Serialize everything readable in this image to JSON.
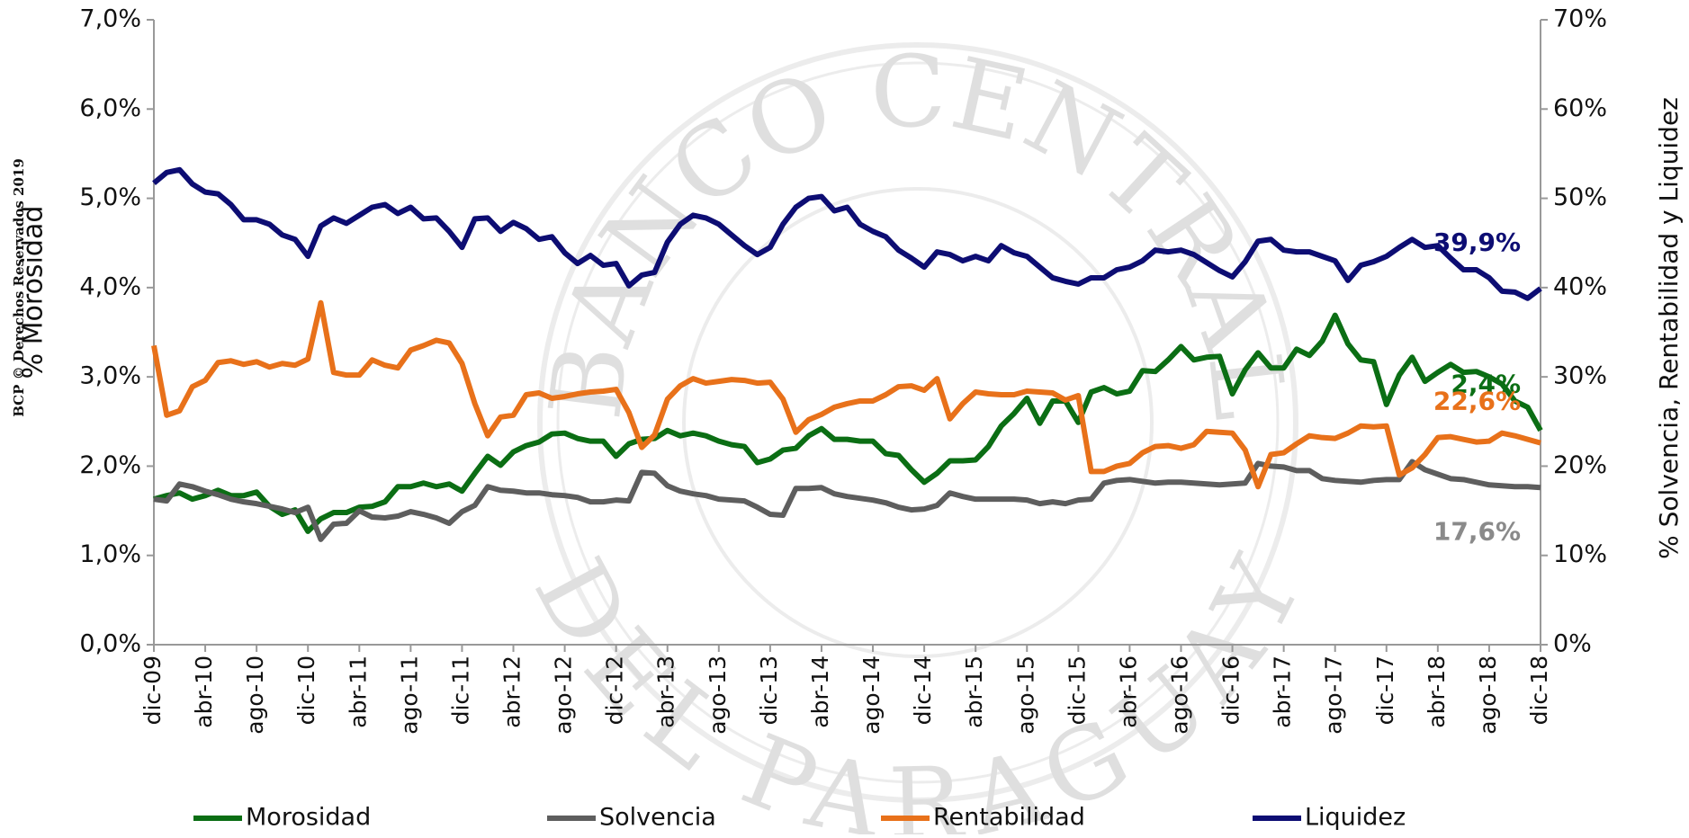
{
  "chart_data": {
    "type": "line",
    "left_axis_title": "% Morosidad",
    "right_axis_title": "% Solvencia, Rentabilidad  y Liquidez",
    "watermark": "BCP © Derechos Reservados 2019",
    "background_seal": [
      "BANCO CENTRAL",
      "DEL PARAGUAY"
    ],
    "categories": [
      "dic-09",
      null,
      null,
      null,
      "abr-10",
      null,
      null,
      null,
      "ago-10",
      null,
      null,
      null,
      "dic-10",
      null,
      null,
      null,
      "abr-11",
      null,
      null,
      null,
      "ago-11",
      null,
      null,
      null,
      "dic-11",
      null,
      null,
      null,
      "abr-12",
      null,
      null,
      null,
      "ago-12",
      null,
      null,
      null,
      "dic-12",
      null,
      null,
      null,
      "abr-13",
      null,
      null,
      null,
      "ago-13",
      null,
      null,
      null,
      "dic-13",
      null,
      null,
      null,
      "abr-14",
      null,
      null,
      null,
      "ago-14",
      null,
      null,
      null,
      "dic-14",
      null,
      null,
      null,
      "abr-15",
      null,
      null,
      null,
      "ago-15",
      null,
      null,
      null,
      "dic-15",
      null,
      null,
      null,
      "abr-16",
      null,
      null,
      null,
      "ago-16",
      null,
      null,
      null,
      "dic-16",
      null,
      null,
      null,
      "abr-17",
      null,
      null,
      null,
      "ago-17",
      null,
      null,
      null,
      "dic-17",
      null,
      null,
      null,
      "abr-18",
      null,
      null,
      null,
      "ago-18",
      null,
      null,
      null,
      "dic-18"
    ],
    "ylim": [
      0,
      7
    ],
    "yticks": [
      {
        "value": 0,
        "label": "0,0%"
      },
      {
        "value": 1,
        "label": "1,0%"
      },
      {
        "value": 2,
        "label": "2,0%"
      },
      {
        "value": 3,
        "label": "3,0%"
      },
      {
        "value": 4,
        "label": "4,0%"
      },
      {
        "value": 5,
        "label": "5,0%"
      },
      {
        "value": 6,
        "label": "6,0%"
      },
      {
        "value": 7,
        "label": "7,0%"
      }
    ],
    "y2lim": [
      0,
      70
    ],
    "y2ticks": [
      {
        "value": 0,
        "label": "0%"
      },
      {
        "value": 10,
        "label": "10%"
      },
      {
        "value": 20,
        "label": "20%"
      },
      {
        "value": 30,
        "label": "30%"
      },
      {
        "value": 40,
        "label": "40%"
      },
      {
        "value": 50,
        "label": "50%"
      },
      {
        "value": 60,
        "label": "60%"
      },
      {
        "value": 70,
        "label": "70%"
      }
    ],
    "grid": false,
    "legend": "bottom",
    "series": [
      {
        "name": "Morosidad",
        "color": "#0b6e14",
        "axis": "y",
        "values": [
          1.63,
          1.67,
          1.7,
          1.63,
          1.67,
          1.73,
          1.67,
          1.67,
          1.71,
          1.55,
          1.46,
          1.51,
          1.27,
          1.41,
          1.48,
          1.48,
          1.54,
          1.55,
          1.6,
          1.77,
          1.77,
          1.81,
          1.77,
          1.8,
          1.72,
          1.92,
          2.11,
          2.01,
          2.16,
          2.23,
          2.27,
          2.36,
          2.37,
          2.31,
          2.28,
          2.28,
          2.11,
          2.25,
          2.3,
          2.31,
          2.4,
          2.34,
          2.37,
          2.34,
          2.28,
          2.24,
          2.22,
          2.04,
          2.08,
          2.18,
          2.2,
          2.34,
          2.42,
          2.3,
          2.3,
          2.28,
          2.28,
          2.14,
          2.12,
          1.96,
          1.82,
          1.92,
          2.06,
          2.06,
          2.07,
          2.22,
          2.45,
          2.59,
          2.76,
          2.48,
          2.73,
          2.73,
          2.49,
          2.83,
          2.88,
          2.81,
          2.84,
          3.07,
          3.06,
          3.19,
          3.34,
          3.19,
          3.22,
          3.23,
          2.81,
          3.08,
          3.27,
          3.1,
          3.1,
          3.31,
          3.24,
          3.4,
          3.69,
          3.37,
          3.19,
          3.17,
          2.69,
          3.02,
          3.22,
          2.95,
          3.05,
          3.14,
          3.05,
          3.06,
          3.0,
          2.92,
          2.73,
          2.66,
          2.4
        ],
        "value_labels": [
          null,
          null,
          null,
          null,
          null,
          null,
          null,
          null,
          null,
          null,
          null,
          null,
          null,
          null,
          null,
          null,
          null,
          null,
          null,
          null,
          null,
          null,
          null,
          null,
          null,
          null,
          null,
          null,
          null,
          null,
          null,
          null,
          null,
          null,
          null,
          null,
          null,
          null,
          null,
          null,
          null,
          null,
          null,
          null,
          null,
          null,
          null,
          null,
          null,
          null,
          null,
          null,
          null,
          null,
          null,
          null,
          null,
          null,
          null,
          null,
          null,
          null,
          null,
          null,
          null,
          null,
          null,
          null,
          null,
          null,
          null,
          null,
          null,
          null,
          null,
          null,
          null,
          null,
          null,
          null,
          null,
          null,
          null,
          null,
          null,
          null,
          null,
          null,
          null,
          null,
          null,
          null,
          null,
          null,
          null,
          null,
          null,
          null,
          null,
          null,
          null,
          null,
          null,
          null,
          null,
          null,
          null,
          null,
          "2,4%"
        ]
      },
      {
        "name": "Solvencia",
        "color": "#5e5e5e",
        "axis": "y2",
        "values": [
          16.3,
          16.1,
          18.0,
          17.7,
          17.2,
          16.8,
          16.3,
          16.0,
          15.8,
          15.5,
          15.2,
          14.8,
          15.4,
          11.8,
          13.5,
          13.6,
          15.0,
          14.3,
          14.2,
          14.4,
          14.9,
          14.6,
          14.2,
          13.6,
          14.9,
          15.6,
          17.7,
          17.3,
          17.2,
          17.0,
          17.0,
          16.8,
          16.7,
          16.5,
          16.0,
          16.0,
          16.2,
          16.1,
          19.3,
          19.2,
          17.8,
          17.2,
          16.9,
          16.7,
          16.3,
          16.2,
          16.1,
          15.4,
          14.6,
          14.5,
          17.5,
          17.5,
          17.6,
          16.9,
          16.6,
          16.4,
          16.2,
          15.9,
          15.4,
          15.1,
          15.2,
          15.6,
          17.0,
          16.6,
          16.3,
          16.3,
          16.3,
          16.3,
          16.2,
          15.8,
          16.0,
          15.8,
          16.2,
          16.3,
          18.1,
          18.4,
          18.5,
          18.3,
          18.1,
          18.2,
          18.2,
          18.1,
          18.0,
          17.9,
          18.0,
          18.1,
          20.3,
          20.0,
          19.9,
          19.5,
          19.5,
          18.6,
          18.4,
          18.3,
          18.2,
          18.4,
          18.5,
          18.5,
          20.5,
          19.6,
          19.1,
          18.6,
          18.5,
          18.2,
          17.9,
          17.8,
          17.7,
          17.7,
          17.6
        ],
        "value_labels": [
          null,
          null,
          null,
          null,
          null,
          null,
          null,
          null,
          null,
          null,
          null,
          null,
          null,
          null,
          null,
          null,
          null,
          null,
          null,
          null,
          null,
          null,
          null,
          null,
          null,
          null,
          null,
          null,
          null,
          null,
          null,
          null,
          null,
          null,
          null,
          null,
          null,
          null,
          null,
          null,
          null,
          null,
          null,
          null,
          null,
          null,
          null,
          null,
          null,
          null,
          null,
          null,
          null,
          null,
          null,
          null,
          null,
          null,
          null,
          null,
          null,
          null,
          null,
          null,
          null,
          null,
          null,
          null,
          null,
          null,
          null,
          null,
          null,
          null,
          null,
          null,
          null,
          null,
          null,
          null,
          null,
          null,
          null,
          null,
          null,
          null,
          null,
          null,
          null,
          null,
          null,
          null,
          null,
          null,
          null,
          null,
          null,
          null,
          null,
          null,
          null,
          null,
          null,
          null,
          null,
          null,
          null,
          null,
          "17,6%"
        ],
        "label_color": "#8a8a8a"
      },
      {
        "name": "Rentabilidad",
        "color": "#e8711a",
        "axis": "y2",
        "values": [
          33.5,
          25.7,
          26.2,
          28.9,
          29.6,
          31.6,
          31.8,
          31.4,
          31.7,
          31.1,
          31.5,
          31.3,
          32.0,
          38.3,
          30.5,
          30.2,
          30.2,
          31.9,
          31.3,
          31.0,
          33.0,
          33.5,
          34.1,
          33.8,
          31.5,
          27.0,
          23.4,
          25.5,
          25.7,
          28.0,
          28.2,
          27.6,
          27.8,
          28.1,
          28.3,
          28.4,
          28.6,
          26.0,
          22.1,
          23.5,
          27.5,
          29.0,
          29.8,
          29.3,
          29.5,
          29.7,
          29.6,
          29.3,
          29.4,
          27.5,
          23.8,
          25.2,
          25.8,
          26.6,
          27.0,
          27.3,
          27.3,
          28.0,
          28.9,
          29.0,
          28.5,
          29.8,
          25.3,
          27.0,
          28.3,
          28.1,
          28.0,
          28.0,
          28.4,
          28.3,
          28.2,
          27.4,
          27.9,
          19.4,
          19.4,
          20.0,
          20.3,
          21.5,
          22.2,
          22.3,
          22.0,
          22.4,
          23.9,
          23.8,
          23.7,
          21.8,
          17.7,
          21.3,
          21.5,
          22.5,
          23.4,
          23.2,
          23.1,
          23.7,
          24.5,
          24.4,
          24.5,
          19.0,
          19.8,
          21.3,
          23.2,
          23.3,
          23.0,
          22.7,
          22.8,
          23.7,
          23.4,
          23.0,
          22.6
        ],
        "value_labels": [
          null,
          null,
          null,
          null,
          null,
          null,
          null,
          null,
          null,
          null,
          null,
          null,
          null,
          null,
          null,
          null,
          null,
          null,
          null,
          null,
          null,
          null,
          null,
          null,
          null,
          null,
          null,
          null,
          null,
          null,
          null,
          null,
          null,
          null,
          null,
          null,
          null,
          null,
          null,
          null,
          null,
          null,
          null,
          null,
          null,
          null,
          null,
          null,
          null,
          null,
          null,
          null,
          null,
          null,
          null,
          null,
          null,
          null,
          null,
          null,
          null,
          null,
          null,
          null,
          null,
          null,
          null,
          null,
          null,
          null,
          null,
          null,
          null,
          null,
          null,
          null,
          null,
          null,
          null,
          null,
          null,
          null,
          null,
          null,
          null,
          null,
          null,
          null,
          null,
          null,
          null,
          null,
          null,
          null,
          null,
          null,
          null,
          null,
          null,
          null,
          null,
          null,
          null,
          null,
          null,
          null,
          null,
          null,
          "22,6%"
        ]
      },
      {
        "name": "Liquidez",
        "color": "#0d0d73",
        "axis": "y2",
        "values": [
          51.7,
          52.9,
          53.2,
          51.6,
          50.7,
          50.5,
          49.3,
          47.6,
          47.6,
          47.1,
          45.9,
          45.4,
          43.5,
          46.9,
          47.8,
          47.2,
          48.1,
          49.0,
          49.3,
          48.3,
          49.0,
          47.7,
          47.8,
          46.3,
          44.5,
          47.7,
          47.8,
          46.3,
          47.3,
          46.6,
          45.4,
          45.7,
          43.9,
          42.7,
          43.6,
          42.5,
          42.7,
          40.2,
          41.4,
          41.7,
          45.1,
          47.1,
          48.1,
          47.8,
          47.1,
          45.9,
          44.7,
          43.7,
          44.5,
          47.1,
          49.0,
          50.0,
          50.2,
          48.6,
          49.0,
          47.1,
          46.3,
          45.7,
          44.2,
          43.3,
          42.3,
          44.0,
          43.7,
          43.0,
          43.5,
          43.0,
          44.7,
          43.9,
          43.5,
          42.3,
          41.1,
          40.7,
          40.4,
          41.1,
          41.1,
          42.0,
          42.3,
          43.0,
          44.2,
          44.0,
          44.2,
          43.7,
          42.8,
          41.9,
          41.2,
          42.9,
          45.2,
          45.4,
          44.2,
          44.0,
          44.0,
          43.5,
          43.0,
          40.8,
          42.5,
          42.9,
          43.5,
          44.5,
          45.4,
          44.5,
          44.7,
          43.3,
          42.0,
          42.0,
          41.1,
          39.6,
          39.5,
          38.8,
          39.9
        ],
        "value_labels": [
          null,
          null,
          null,
          null,
          null,
          null,
          null,
          null,
          null,
          null,
          null,
          null,
          null,
          null,
          null,
          null,
          null,
          null,
          null,
          null,
          null,
          null,
          null,
          null,
          null,
          null,
          null,
          null,
          null,
          null,
          null,
          null,
          null,
          null,
          null,
          null,
          null,
          null,
          null,
          null,
          null,
          null,
          null,
          null,
          null,
          null,
          null,
          null,
          null,
          null,
          null,
          null,
          null,
          null,
          null,
          null,
          null,
          null,
          null,
          null,
          null,
          null,
          null,
          null,
          null,
          null,
          null,
          null,
          null,
          null,
          null,
          null,
          null,
          null,
          null,
          null,
          null,
          null,
          null,
          null,
          null,
          null,
          null,
          null,
          null,
          null,
          null,
          null,
          null,
          null,
          null,
          null,
          null,
          null,
          null,
          null,
          null,
          null,
          null,
          null,
          null,
          null,
          null,
          null,
          null,
          null,
          null,
          null,
          "39,9%"
        ]
      }
    ]
  }
}
